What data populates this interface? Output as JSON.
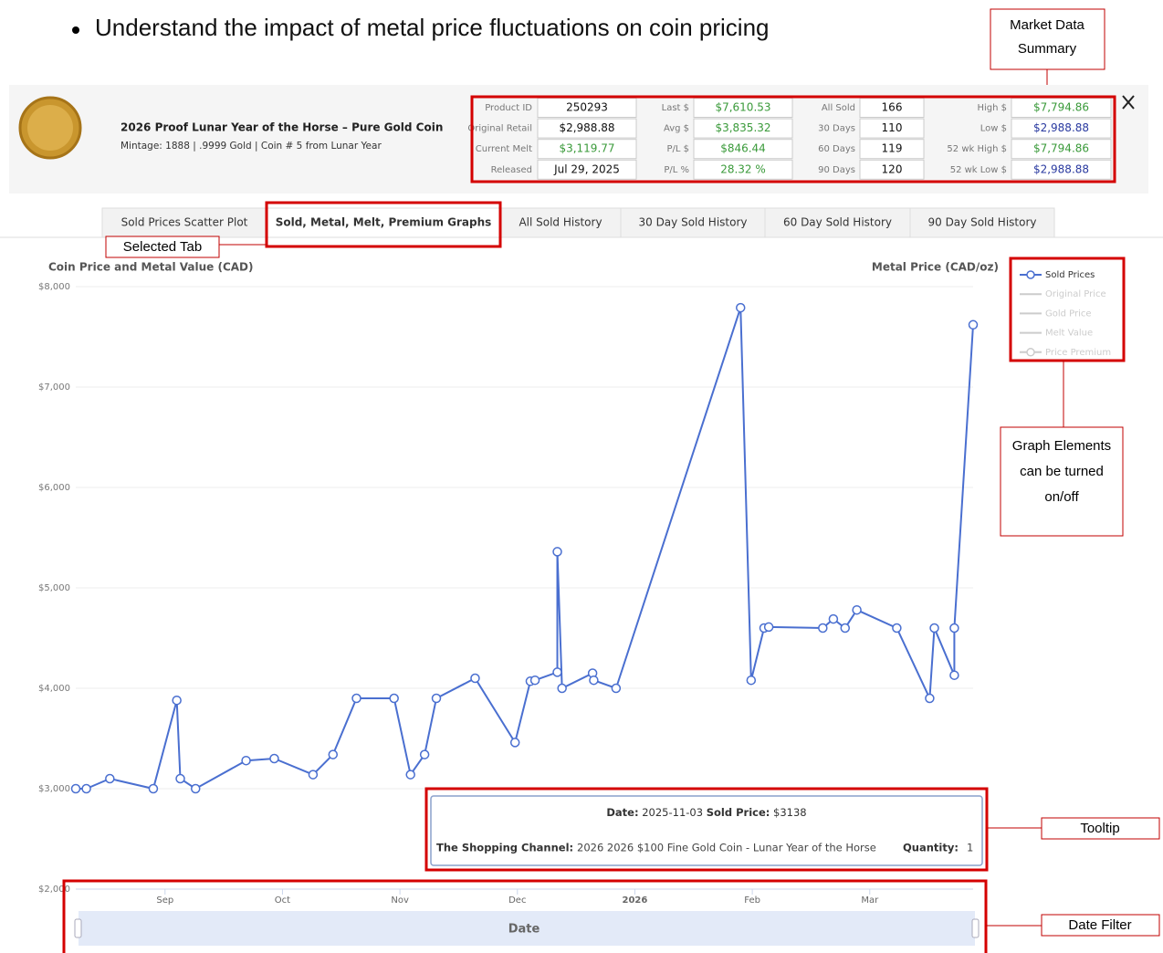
{
  "document": {
    "bullets": [
      "Understand the impact of metal price fluctuations on coin pricing"
    ]
  },
  "callouts": {
    "market_data": [
      "Market Data",
      "Summary"
    ],
    "selected_tab": "Selected Tab",
    "graph_elements": [
      "Graph Elements",
      "can be turned",
      "on/off"
    ],
    "tooltip": "Tooltip",
    "date_filter": "Date Filter"
  },
  "product": {
    "title": "2026 Proof Lunar Year of the Horse – Pure Gold Coin",
    "details": "Mintage: 1888  |  .9999 Gold  |  Coin # 5 from Lunar Year"
  },
  "summary": {
    "rows": [
      [
        [
          "Product ID",
          "250293"
        ],
        [
          "Last $",
          "$7,610.53"
        ],
        [
          "All Sold",
          "166"
        ],
        [
          "High $",
          "$7,794.86"
        ]
      ],
      [
        [
          "Original Retail",
          "$2,988.88"
        ],
        [
          "Avg $",
          "$3,835.32"
        ],
        [
          "30 Days",
          "110"
        ],
        [
          "Low $",
          "$2,988.88"
        ]
      ],
      [
        [
          "Current Melt",
          "$3,119.77"
        ],
        [
          "P/L $",
          "$846.44"
        ],
        [
          "60 Days",
          "119"
        ],
        [
          "52 wk High $",
          "$7,794.86"
        ]
      ],
      [
        [
          "Released",
          "Jul 29, 2025"
        ],
        [
          "P/L %",
          "28.32 %"
        ],
        [
          "90 Days",
          "120"
        ],
        [
          "52 wk Low $",
          "$2,988.88"
        ]
      ]
    ]
  },
  "tabs": {
    "items": [
      "Sold Prices Scatter Plot",
      "Sold, Metal, Melt, Premium Graphs",
      "All Sold History",
      "30 Day Sold History",
      "60 Day Sold History",
      "90 Day Sold History"
    ],
    "selected": 1
  },
  "chart_data": {
    "type": "line",
    "y_axis_title": "Coin Price and Metal Value (CAD)",
    "y2_axis_title": "Metal Price (CAD/oz)",
    "x": [
      8.24,
      8.33,
      8.53,
      8.9,
      9.1,
      9.13,
      9.26,
      9.69,
      9.93,
      10.26,
      10.43,
      10.63,
      10.95,
      11.09,
      11.21,
      11.31,
      11.64,
      11.98,
      12.11,
      12.15,
      12.34,
      12.34,
      12.38,
      12.64,
      12.65,
      12.84,
      13.9,
      13.99,
      14.1,
      14.14,
      14.6,
      14.69,
      14.79,
      14.89,
      15.23,
      15.51,
      15.55,
      15.72,
      15.72,
      15.88
    ],
    "series": [
      {
        "name": "Sold Prices",
        "color": "#4a6fd0",
        "values": [
          3000,
          3000,
          3100,
          3000,
          3880,
          3100,
          3000,
          3280,
          3300,
          3140,
          3340,
          3900,
          3900,
          3140,
          3340,
          3900,
          4100,
          3460,
          4070,
          4080,
          4160,
          5360,
          4000,
          4150,
          4080,
          4000,
          7790,
          4080,
          4600,
          4610,
          4600,
          4690,
          4600,
          4780,
          4600,
          3900,
          4600,
          4130,
          4600,
          7620
        ]
      }
    ],
    "legend_inactive": [
      "Original Price",
      "Gold Price",
      "Melt Value",
      "Price Premium"
    ],
    "legend": "top-right",
    "xlim": [
      8.24,
      15.88
    ],
    "xticks": [
      {
        "value": 9,
        "label": "Sep"
      },
      {
        "value": 10,
        "label": "Oct"
      },
      {
        "value": 11,
        "label": "Nov"
      },
      {
        "value": 12,
        "label": "Dec"
      },
      {
        "value": 13,
        "label": "2026"
      },
      {
        "value": 14,
        "label": "Feb"
      },
      {
        "value": 15,
        "label": "Mar"
      }
    ],
    "ylim": [
      2000,
      8000
    ],
    "yticks": [
      {
        "value": 2000,
        "label": "$2,000"
      },
      {
        "value": 3000,
        "label": "$3,000"
      },
      {
        "value": 4000,
        "label": "$4,000"
      },
      {
        "value": 5000,
        "label": "$5,000"
      },
      {
        "value": 6000,
        "label": "$6,000"
      },
      {
        "value": 7000,
        "label": "$7,000"
      },
      {
        "value": 8000,
        "label": "$8,000"
      }
    ],
    "grid": true
  },
  "tooltip": {
    "date_label": "Date:",
    "date": "2025-11-03",
    "price_label": "Sold Price:",
    "price": "$3138",
    "seller": "The Shopping Channel:",
    "item": "2026 2026 $100 Fine Gold Coin - Lunar Year of the Horse",
    "quantity_label": "Quantity:",
    "quantity": "1"
  },
  "navigator": {
    "label": "Date"
  }
}
